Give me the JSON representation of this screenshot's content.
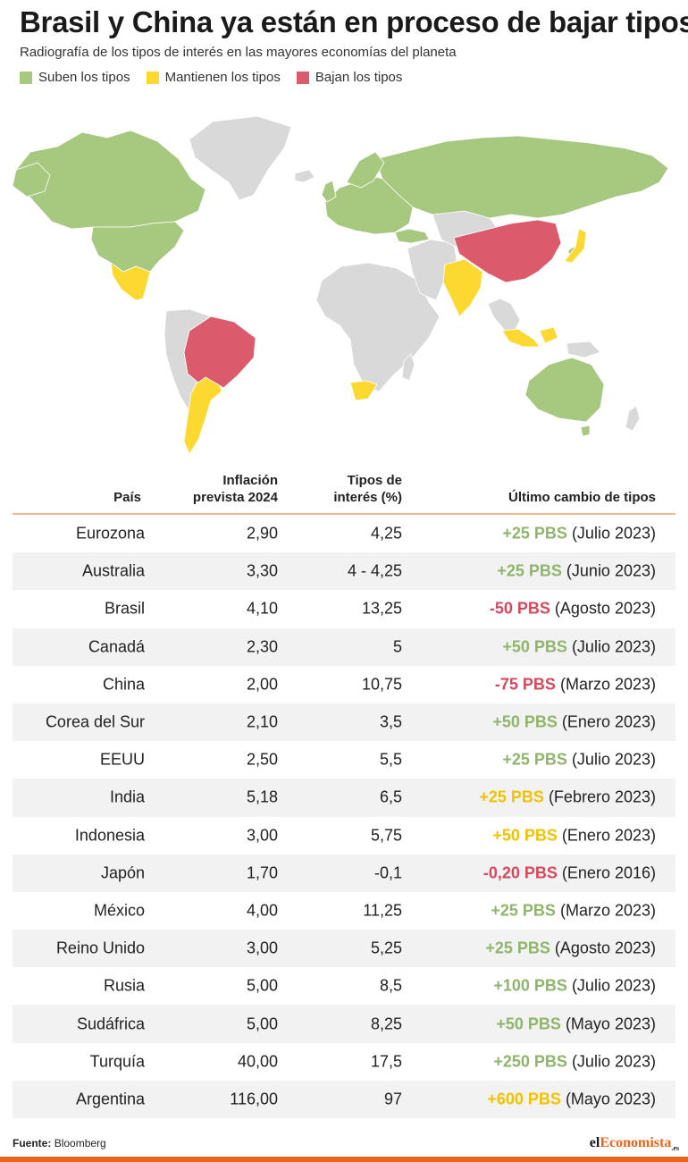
{
  "title": "Brasil y China ya están en proceso de bajar tipos",
  "subtitle": "Radiografía de los tipos de interés en las mayores economías del planeta",
  "legend": [
    {
      "label": "Suben los tipos",
      "color": "#a6c87f"
    },
    {
      "label": "Mantienen los tipos",
      "color": "#fcd931"
    },
    {
      "label": "Bajan los tipos",
      "color": "#db5a6b"
    }
  ],
  "colors": {
    "neutral": "#d9d9d9",
    "border": "#ffffff",
    "rise_text": "#8fb56b",
    "hold_text": "#f2c200",
    "cut_text": "#d44a5c"
  },
  "table": {
    "headers": {
      "country": "País",
      "inflation_line1": "Inflación",
      "inflation_line2": "prevista 2024",
      "rate_line1": "Tipos de",
      "rate_line2": "interés (%)",
      "change": "Último cambio de tipos"
    },
    "rows": [
      {
        "country": "Eurozona",
        "inflation": "2,90",
        "rate": "4,25",
        "change": "+25 PBS",
        "date": "(Julio 2023)",
        "status": "up"
      },
      {
        "country": "Australia",
        "inflation": "3,30",
        "rate": "4 - 4,25",
        "change": "+25 PBS",
        "date": "(Junio 2023)",
        "status": "up"
      },
      {
        "country": "Brasil",
        "inflation": "4,10",
        "rate": "13,25",
        "change": "-50 PBS",
        "date": "(Agosto 2023)",
        "status": "down"
      },
      {
        "country": "Canadá",
        "inflation": "2,30",
        "rate": "5",
        "change": "+50 PBS",
        "date": "(Julio 2023)",
        "status": "up"
      },
      {
        "country": "China",
        "inflation": "2,00",
        "rate": "10,75",
        "change": "-75 PBS",
        "date": "(Marzo 2023)",
        "status": "down"
      },
      {
        "country": "Corea del Sur",
        "inflation": "2,10",
        "rate": "3,5",
        "change": "+50 PBS",
        "date": "(Enero 2023)",
        "status": "up"
      },
      {
        "country": "EEUU",
        "inflation": "2,50",
        "rate": "5,5",
        "change": "+25 PBS",
        "date": "(Julio 2023)",
        "status": "up"
      },
      {
        "country": "India",
        "inflation": "5,18",
        "rate": "6,5",
        "change": "+25 PBS",
        "date": "(Febrero 2023)",
        "status": "hold"
      },
      {
        "country": "Indonesia",
        "inflation": "3,00",
        "rate": "5,75",
        "change": "+50 PBS",
        "date": "(Enero 2023)",
        "status": "hold"
      },
      {
        "country": "Japón",
        "inflation": "1,70",
        "rate": "-0,1",
        "change": "-0,20 PBS",
        "date": "(Enero 2016)",
        "status": "down"
      },
      {
        "country": "México",
        "inflation": "4,00",
        "rate": "11,25",
        "change": "+25 PBS",
        "date": "(Marzo 2023)",
        "status": "up"
      },
      {
        "country": "Reino Unido",
        "inflation": "3,00",
        "rate": "5,25",
        "change": "+25 PBS",
        "date": "(Agosto 2023)",
        "status": "up"
      },
      {
        "country": "Rusia",
        "inflation": "5,00",
        "rate": "8,5",
        "change": "+100 PBS",
        "date": "(Julio 2023)",
        "status": "up"
      },
      {
        "country": "Sudáfrica",
        "inflation": "5,00",
        "rate": "8,25",
        "change": "+50 PBS",
        "date": "(Mayo 2023)",
        "status": "up"
      },
      {
        "country": "Turquía",
        "inflation": "40,00",
        "rate": "17,5",
        "change": "+250 PBS",
        "date": "(Julio 2023)",
        "status": "up"
      },
      {
        "country": "Argentina",
        "inflation": "116,00",
        "rate": "97",
        "change": "+600 PBS",
        "date": "(Mayo 2023)",
        "status": "hold"
      }
    ]
  },
  "footer": {
    "source_label": "Fuente:",
    "source_value": "Bloomberg"
  },
  "brand": {
    "part1": "el",
    "part2": "Economista",
    "suffix": ".es"
  }
}
